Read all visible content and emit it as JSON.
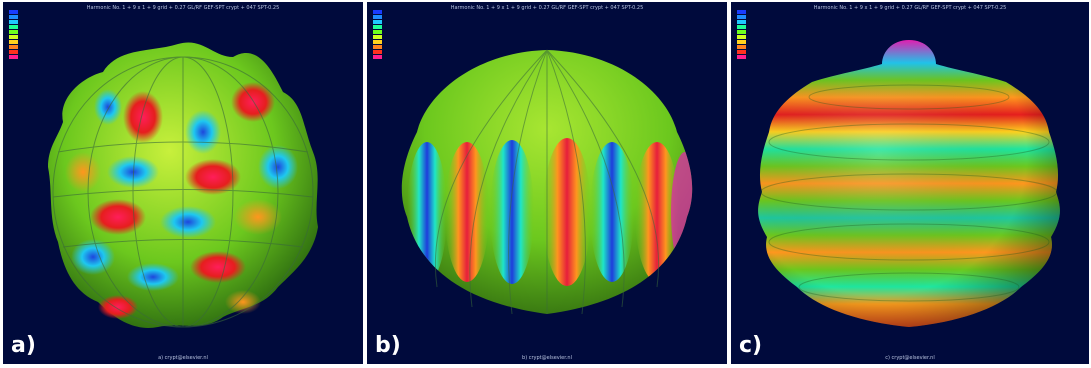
{
  "panels": [
    {
      "label": "a)",
      "header": "Harmonic No. 1 + 9 x 1 + 9 grid + 0.27 GL/RF GEF-SPT crypt + 047 SPT-0.25",
      "footer": "a)  crypt@elsevier.nl"
    },
    {
      "label": "b)",
      "header": "Harmonic No. 1 + 9 x 1 + 9 grid + 0.27 GL/RF GEF-SPT crypt + 047 SPT-0.25",
      "footer": "b)  crypt@elsevier.nl"
    },
    {
      "label": "c)",
      "header": "Harmonic No. 1 + 9 x 1 + 9 grid + 0.27 GL/RF GEF-SPT crypt + 047 SPT-0.25",
      "footer": "c)  crypt@elsevier.nl"
    }
  ],
  "legend_colors": [
    "#1a3cff",
    "#1e8cff",
    "#1ec8ff",
    "#1eff96",
    "#6eff1e",
    "#d2ff1e",
    "#ffd21e",
    "#ff821e",
    "#ff321e",
    "#ff1e8c",
    "#ff1ed2"
  ],
  "colors": {
    "background": "#000a3c",
    "green": "#7cc81e",
    "red": "#e61e1e",
    "blue": "#1e46dc",
    "magenta": "#e61eb4"
  }
}
